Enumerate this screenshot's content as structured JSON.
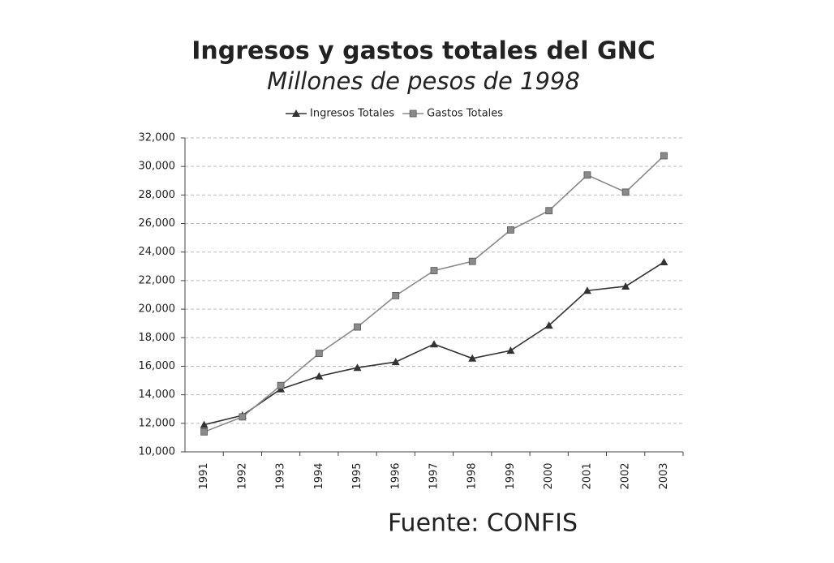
{
  "chart_data": {
    "type": "line",
    "title": "Ingresos y gastos totales del GNC",
    "subtitle": "Millones de pesos de 1998",
    "source": "Fuente: CONFIS",
    "categories": [
      "1991",
      "1992",
      "1993",
      "1994",
      "1995",
      "1996",
      "1997",
      "1998",
      "1999",
      "2000",
      "2001",
      "2002",
      "2003"
    ],
    "series": [
      {
        "name": "Ingresos Totales",
        "color": "#333333",
        "marker": "triangle",
        "values": [
          11900,
          12560,
          14400,
          15300,
          15900,
          16300,
          17550,
          16550,
          17100,
          18860,
          21300,
          21600,
          23300
        ]
      },
      {
        "name": "Gastos Totales",
        "color": "#8a8a8a",
        "marker": "square",
        "values": [
          11400,
          12450,
          14650,
          16900,
          18750,
          20950,
          22700,
          23350,
          25550,
          26900,
          29400,
          28200,
          30750
        ]
      }
    ],
    "ylim": [
      10000,
      32000
    ],
    "yticks": [
      {
        "value": 10000,
        "label": "10,000"
      },
      {
        "value": 12000,
        "label": "12,000"
      },
      {
        "value": 14000,
        "label": "14,000"
      },
      {
        "value": 16000,
        "label": "16,000"
      },
      {
        "value": 18000,
        "label": "18,000"
      },
      {
        "value": 20000,
        "label": "20,000"
      },
      {
        "value": 22000,
        "label": "22,000"
      },
      {
        "value": 24000,
        "label": "24,000"
      },
      {
        "value": 26000,
        "label": "26,000"
      },
      {
        "value": 28000,
        "label": "28,000"
      },
      {
        "value": 30000,
        "label": "30,000"
      },
      {
        "value": 32000,
        "label": "32,000"
      }
    ],
    "grid": true,
    "legend": "top"
  }
}
